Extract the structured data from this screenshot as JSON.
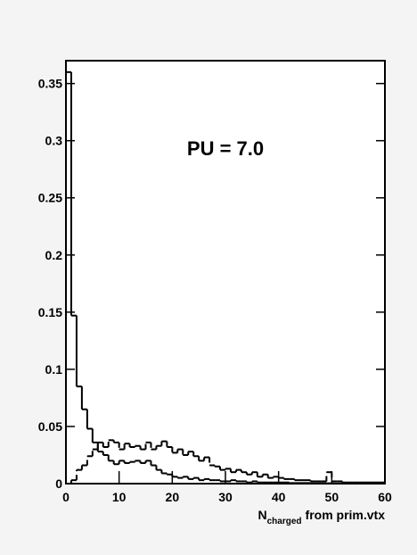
{
  "chart_data": {
    "type": "histogram",
    "annotation": "PU = 7.0",
    "x_label": "N",
    "x_label_subscript": "charged",
    "x_label_rest": "from prim.vtx",
    "bins": [
      0,
      1,
      2,
      3,
      4,
      5,
      6,
      7,
      8,
      9,
      10,
      11,
      12,
      13,
      14,
      15,
      16,
      17,
      18,
      19,
      20,
      21,
      22,
      23,
      24,
      25,
      26,
      27,
      28,
      29,
      30,
      31,
      32,
      33,
      34,
      35,
      36,
      37,
      38,
      39,
      40,
      41,
      42,
      43,
      44,
      45,
      46,
      47,
      48,
      49,
      50,
      51,
      52,
      53,
      54,
      55,
      56,
      57,
      58,
      59,
      60
    ],
    "series": [
      {
        "color": "#000000",
        "line_style": "solid",
        "values": [
          0.36,
          0.147,
          0.085,
          0.065,
          0.048,
          0.036,
          0.028,
          0.025,
          0.02,
          0.017,
          0.02,
          0.018,
          0.019,
          0.02,
          0.018,
          0.02,
          0.016,
          0.012,
          0.009,
          0.008,
          0.006,
          0.005,
          0.006,
          0.004,
          0.005,
          0.003,
          0.004,
          0.003,
          0.003,
          0.002,
          0.002,
          0.003,
          0.002,
          0.002,
          0.001,
          0.002,
          0.001,
          0.001,
          0.001,
          0.001,
          0.001,
          0.001,
          0.0005,
          0.0005,
          0.0005,
          0.0005,
          0.0003,
          0.0003,
          0.0003,
          0.0003,
          0.0002,
          0.0002,
          0.0002,
          0.0001,
          0.0001,
          0.0001,
          0.0001,
          0.0001,
          0.0001,
          0.0001
        ]
      },
      {
        "color": "#000000",
        "line_style": "dashed",
        "values": [
          0,
          0.003,
          0.012,
          0.016,
          0.024,
          0.03,
          0.036,
          0.032,
          0.038,
          0.036,
          0.03,
          0.035,
          0.032,
          0.033,
          0.03,
          0.036,
          0.03,
          0.033,
          0.037,
          0.032,
          0.027,
          0.03,
          0.025,
          0.028,
          0.024,
          0.02,
          0.023,
          0.016,
          0.015,
          0.012,
          0.013,
          0.01,
          0.012,
          0.01,
          0.008,
          0.01,
          0.006,
          0.008,
          0.005,
          0.006,
          0.005,
          0.004,
          0.004,
          0.003,
          0.003,
          0.003,
          0.002,
          0.002,
          0.002,
          0.01,
          0.002,
          0.002,
          0.001,
          0.001,
          0.001,
          0.001,
          0.001,
          0.001,
          0.001,
          0.001
        ]
      }
    ],
    "xlim": [
      0,
      60
    ],
    "xticks": [
      0,
      10,
      20,
      30,
      40,
      50,
      60
    ],
    "ylim": [
      0,
      0.37
    ],
    "yticks": [
      0,
      0.05,
      0.1,
      0.15,
      0.2,
      0.25,
      0.3,
      0.35
    ]
  }
}
